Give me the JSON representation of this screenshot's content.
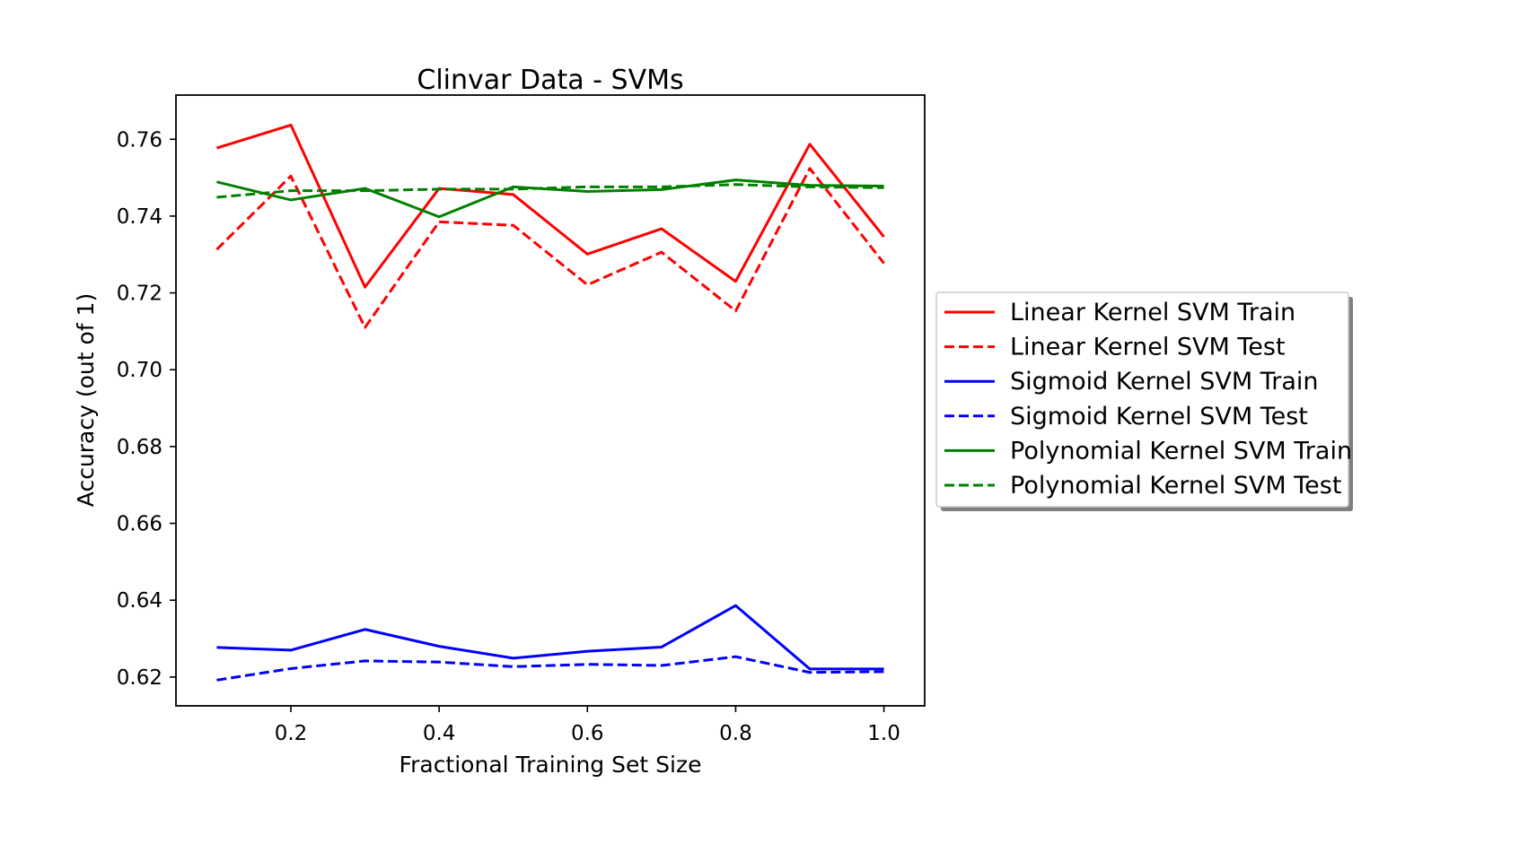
{
  "chart_data": {
    "type": "line",
    "title": "Clinvar Data - SVMs",
    "xlabel": "Fractional Training Set Size",
    "ylabel": "Accuracy (out of 1)",
    "xlim": [
      0.045,
      1.055
    ],
    "ylim": [
      0.6125,
      0.7715
    ],
    "x_ticks": [
      0.2,
      0.4,
      0.6,
      0.8,
      1.0
    ],
    "x_tick_labels": [
      "0.2",
      "0.4",
      "0.6",
      "0.8",
      "1.0"
    ],
    "y_ticks": [
      0.62,
      0.64,
      0.66,
      0.68,
      0.7,
      0.72,
      0.74,
      0.76
    ],
    "y_tick_labels": [
      "0.62",
      "0.64",
      "0.66",
      "0.68",
      "0.70",
      "0.72",
      "0.74",
      "0.76"
    ],
    "grid": false,
    "legend_placement": "outside-right",
    "x": [
      0.1,
      0.2,
      0.3,
      0.4,
      0.5,
      0.6,
      0.7,
      0.8,
      0.9,
      1.0
    ],
    "series": [
      {
        "name": "Linear Kernel SVM Train",
        "color": "#ff0000",
        "style": "solid",
        "values": [
          0.7577,
          0.7637,
          0.7215,
          0.7472,
          0.7456,
          0.7301,
          0.7367,
          0.723,
          0.7587,
          0.7346
        ]
      },
      {
        "name": "Linear Kernel SVM Test",
        "color": "#ff0000",
        "style": "dashed",
        "values": [
          0.7313,
          0.7504,
          0.711,
          0.7385,
          0.7376,
          0.7221,
          0.7306,
          0.7153,
          0.7524,
          0.7277
        ]
      },
      {
        "name": "Sigmoid Kernel SVM Train",
        "color": "#0000ff",
        "style": "solid",
        "values": [
          0.6277,
          0.627,
          0.6324,
          0.628,
          0.6249,
          0.6267,
          0.6278,
          0.6386,
          0.6221,
          0.6221
        ]
      },
      {
        "name": "Sigmoid Kernel SVM Test",
        "color": "#0000ff",
        "style": "dashed",
        "values": [
          0.6192,
          0.6222,
          0.6242,
          0.6239,
          0.6227,
          0.6233,
          0.623,
          0.6253,
          0.6212,
          0.6214
        ]
      },
      {
        "name": "Polynomial Kernel SVM Train",
        "color": "#008000",
        "style": "solid",
        "values": [
          0.7489,
          0.7442,
          0.7472,
          0.7398,
          0.7476,
          0.7464,
          0.7469,
          0.7494,
          0.748,
          0.7478
        ]
      },
      {
        "name": "Polynomial Kernel SVM Test",
        "color": "#008000",
        "style": "dashed",
        "values": [
          0.7449,
          0.7466,
          0.7466,
          0.747,
          0.747,
          0.7476,
          0.7476,
          0.7482,
          0.7476,
          0.7474
        ]
      }
    ]
  }
}
